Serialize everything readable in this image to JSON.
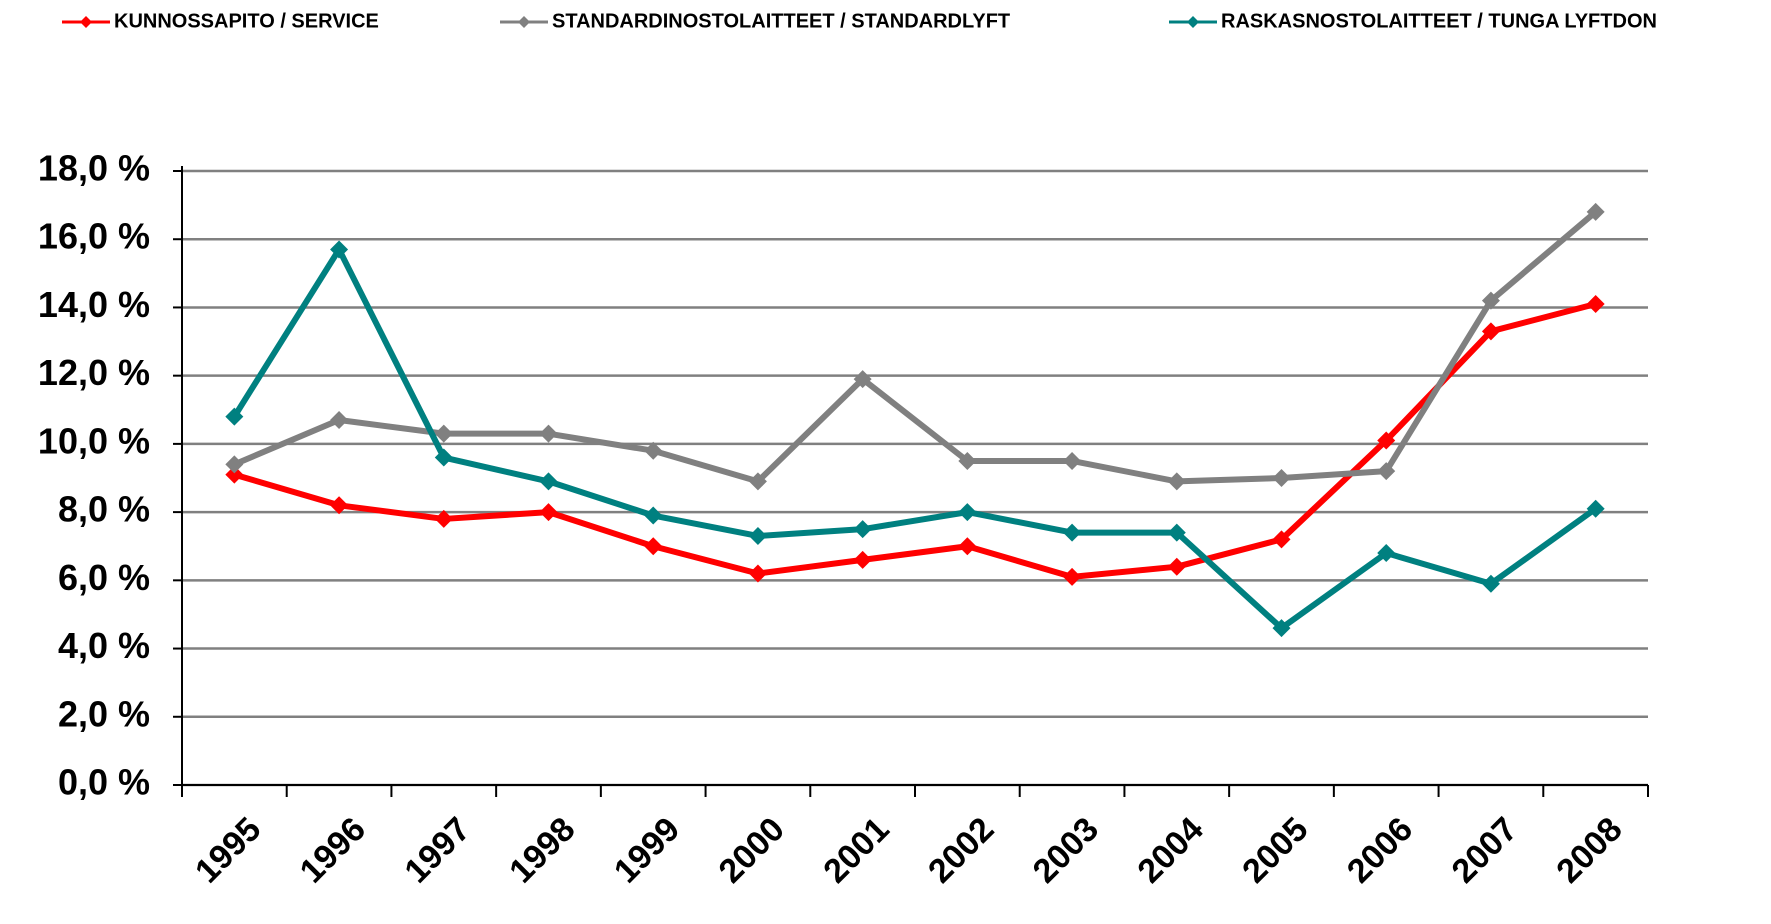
{
  "chart_data": {
    "type": "line",
    "categories": [
      "1995",
      "1996",
      "1997",
      "1998",
      "1999",
      "2000",
      "2001",
      "2002",
      "2003",
      "2004",
      "2005",
      "2006",
      "2007",
      "2008"
    ],
    "series": [
      {
        "name": "KUNNOSSAPITO / SERVICE",
        "color": "#ff0000",
        "values": [
          9.1,
          8.2,
          7.8,
          8.0,
          7.0,
          6.2,
          6.6,
          7.0,
          6.1,
          6.4,
          7.2,
          10.1,
          13.3,
          14.1
        ]
      },
      {
        "name": "STANDARDINOSTOLAITTEET / STANDARDLYFT",
        "color": "#808080",
        "values": [
          9.4,
          10.7,
          10.3,
          10.3,
          9.8,
          8.9,
          11.9,
          9.5,
          9.5,
          8.9,
          9.0,
          9.2,
          14.2,
          16.8
        ]
      },
      {
        "name": "RASKASNOSTOLAITTEET / TUNGA LYFTDON",
        "color": "#008080",
        "values": [
          10.8,
          15.7,
          9.6,
          8.9,
          7.9,
          7.3,
          7.5,
          8.0,
          7.4,
          7.4,
          4.6,
          6.8,
          5.9,
          8.1
        ]
      }
    ],
    "ylim": [
      0,
      18
    ],
    "yticks": [
      {
        "value": 0,
        "label": "0,0 %"
      },
      {
        "value": 2,
        "label": "2,0 %"
      },
      {
        "value": 4,
        "label": "4,0 %"
      },
      {
        "value": 6,
        "label": "6,0 %"
      },
      {
        "value": 8,
        "label": "8,0 %"
      },
      {
        "value": 10,
        "label": "10,0 %"
      },
      {
        "value": 12,
        "label": "12,0 %"
      },
      {
        "value": 14,
        "label": "14,0 %"
      },
      {
        "value": 16,
        "label": "16,0 %"
      },
      {
        "value": 18,
        "label": "18,0 %"
      }
    ],
    "grid": true
  }
}
